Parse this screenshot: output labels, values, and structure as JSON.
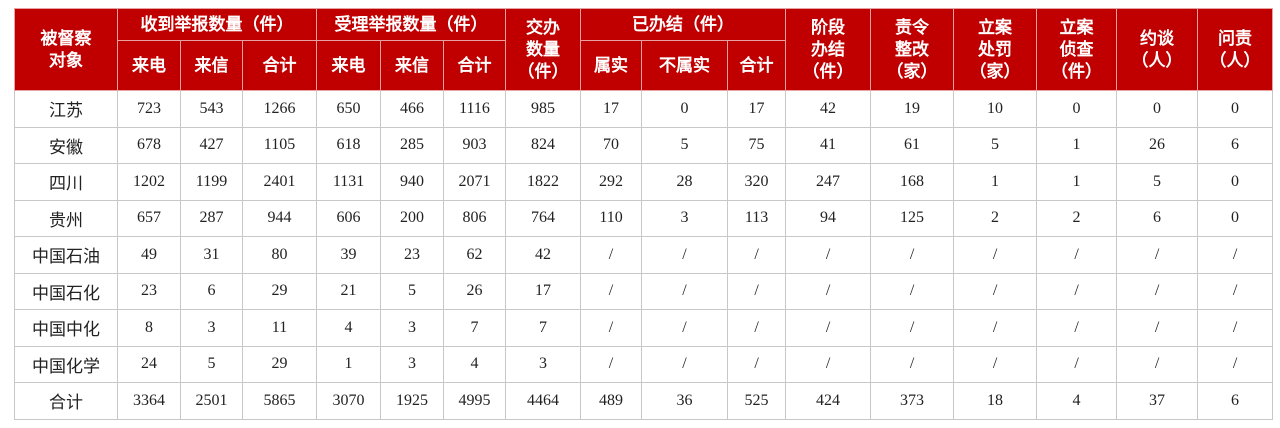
{
  "table": {
    "header": [
      {
        "lines": [
          "被督察",
          "对象"
        ]
      },
      {
        "lines": [
          "收到举报数量（件）"
        ],
        "sub": [
          "来电",
          "来信",
          "合计"
        ]
      },
      {
        "lines": [
          "受理举报数量（件）"
        ],
        "sub": [
          "来电",
          "来信",
          "合计"
        ]
      },
      {
        "lines": [
          "交办",
          "数量",
          "（件）"
        ]
      },
      {
        "lines": [
          "已办结（件）"
        ],
        "sub": [
          "属实",
          "不属实",
          "合计"
        ]
      },
      {
        "lines": [
          "阶段",
          "办结",
          "（件）"
        ]
      },
      {
        "lines": [
          "责令",
          "整改",
          "（家）"
        ]
      },
      {
        "lines": [
          "立案",
          "处罚",
          "（家）"
        ]
      },
      {
        "lines": [
          "立案",
          "侦查",
          "（件）"
        ]
      },
      {
        "lines": [
          "约谈",
          "（人）"
        ]
      },
      {
        "lines": [
          "问责",
          "（人）"
        ]
      }
    ],
    "rows": [
      [
        "江苏",
        723,
        543,
        1266,
        650,
        466,
        1116,
        985,
        17,
        0,
        17,
        42,
        19,
        10,
        0,
        0,
        0
      ],
      [
        "安徽",
        678,
        427,
        1105,
        618,
        285,
        903,
        824,
        70,
        5,
        75,
        41,
        61,
        5,
        1,
        26,
        6
      ],
      [
        "四川",
        1202,
        1199,
        2401,
        1131,
        940,
        2071,
        1822,
        292,
        28,
        320,
        247,
        168,
        1,
        1,
        5,
        0
      ],
      [
        "贵州",
        657,
        287,
        944,
        606,
        200,
        806,
        764,
        110,
        3,
        113,
        94,
        125,
        2,
        2,
        6,
        0
      ],
      [
        "中国石油",
        49,
        31,
        80,
        39,
        23,
        62,
        42,
        "/",
        "/",
        "/",
        "/",
        "/",
        "/",
        "/",
        "/",
        "/"
      ],
      [
        "中国石化",
        23,
        6,
        29,
        21,
        5,
        26,
        17,
        "/",
        "/",
        "/",
        "/",
        "/",
        "/",
        "/",
        "/",
        "/"
      ],
      [
        "中国中化",
        8,
        3,
        11,
        4,
        3,
        7,
        7,
        "/",
        "/",
        "/",
        "/",
        "/",
        "/",
        "/",
        "/",
        "/"
      ],
      [
        "中国化学",
        24,
        5,
        29,
        1,
        3,
        4,
        3,
        "/",
        "/",
        "/",
        "/",
        "/",
        "/",
        "/",
        "/",
        "/"
      ],
      [
        "合计",
        3364,
        2501,
        5865,
        3070,
        1925,
        4995,
        4464,
        489,
        36,
        525,
        424,
        373,
        18,
        4,
        37,
        6
      ]
    ]
  }
}
